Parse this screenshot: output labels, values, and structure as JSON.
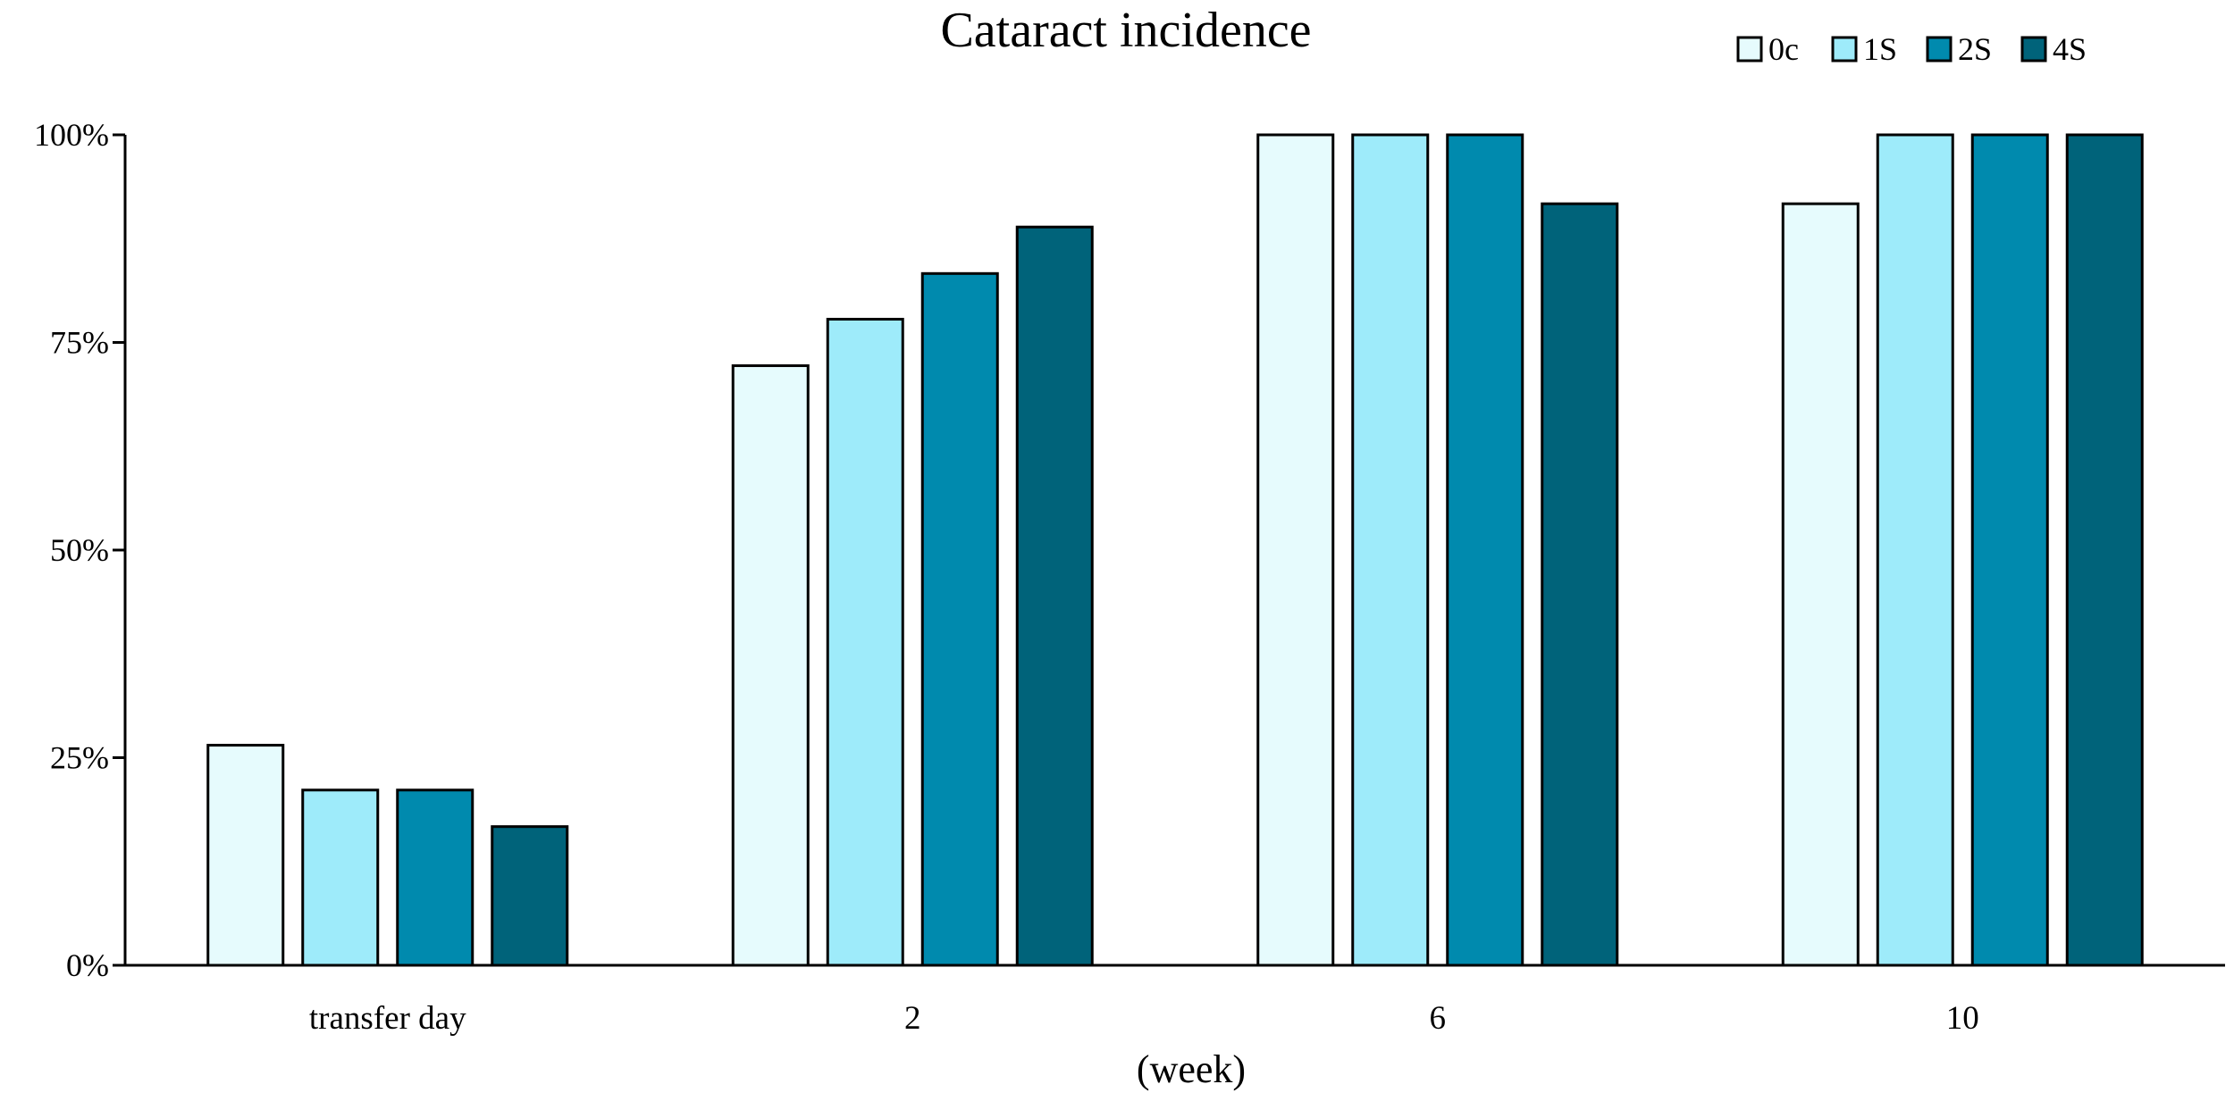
{
  "chart_data": {
    "type": "bar",
    "title": "Cataract incidence",
    "xlabel": "(week)",
    "ylabel": "",
    "ylim": [
      0,
      100
    ],
    "yticks": [
      0,
      25,
      50,
      75,
      100
    ],
    "ytick_labels": [
      "0%",
      "25%",
      "50%",
      "75%",
      "100%"
    ],
    "categories": [
      "transfer day",
      "2",
      "6",
      "10"
    ],
    "series": [
      {
        "name": "0c",
        "color": "#e6fbfd",
        "values": [
          26.5,
          72.2,
          100,
          91.7
        ]
      },
      {
        "name": "1S",
        "color": "#9eebfa",
        "values": [
          21.1,
          77.8,
          100,
          100
        ]
      },
      {
        "name": "2S",
        "color": "#008aae",
        "values": [
          21.1,
          83.3,
          100,
          100
        ]
      },
      {
        "name": "4S",
        "color": "#00637a",
        "values": [
          16.7,
          88.9,
          91.7,
          100
        ]
      }
    ],
    "legend": "top-right",
    "grid": false
  }
}
